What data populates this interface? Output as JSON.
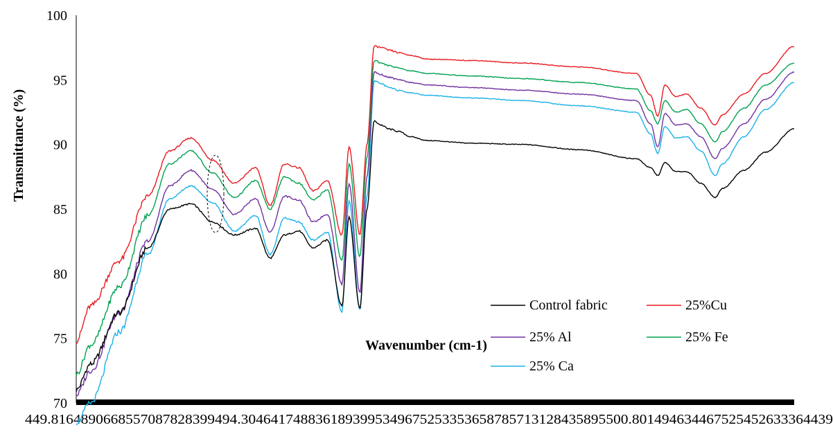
{
  "chart_data": {
    "type": "line",
    "title": "",
    "xlabel": "Wavenumber (cm-1)",
    "ylabel": "Transmittance (%)",
    "ylim": [
      70,
      100
    ],
    "yticks": [
      "70",
      "75",
      "80",
      "85",
      "90",
      "95",
      "100"
    ],
    "xtick_text": "449.8164890668557087828399494.3046417488361893995349675253353658785713128435895500.801494634467525452633364439",
    "x_direction": "increasing left to right",
    "grid": false,
    "legend_placement": "bottom-right",
    "series": [
      {
        "name": "Control fabric",
        "color": "#000000",
        "x": [
          0,
          0.02,
          0.06,
          0.1,
          0.13,
          0.16,
          0.19,
          0.22,
          0.25,
          0.27,
          0.29,
          0.31,
          0.33,
          0.35,
          0.37,
          0.38,
          0.395,
          0.405,
          0.415,
          0.425,
          0.435,
          0.45,
          0.465,
          0.49,
          0.55,
          0.62,
          0.7,
          0.78,
          0.8,
          0.81,
          0.82,
          0.835,
          0.85,
          0.87,
          0.89,
          0.9,
          0.93,
          0.96,
          1.0
        ],
        "values": [
          71.0,
          73.0,
          77.0,
          82.0,
          85.0,
          85.4,
          84.0,
          83.0,
          83.5,
          81.2,
          83.0,
          83.3,
          82.0,
          82.6,
          77.5,
          84.4,
          77.3,
          85.0,
          91.8,
          91.5,
          91.2,
          91.0,
          90.6,
          90.3,
          90.1,
          90.0,
          89.6,
          88.9,
          88.2,
          87.6,
          88.6,
          87.9,
          87.9,
          87.0,
          85.9,
          86.6,
          88.0,
          89.4,
          91.2
        ]
      },
      {
        "name": "25%Cu",
        "color": "#e8191f",
        "x": [
          0,
          0.02,
          0.06,
          0.1,
          0.13,
          0.16,
          0.19,
          0.22,
          0.25,
          0.27,
          0.29,
          0.31,
          0.33,
          0.35,
          0.37,
          0.38,
          0.395,
          0.405,
          0.415,
          0.425,
          0.435,
          0.45,
          0.465,
          0.49,
          0.55,
          0.62,
          0.7,
          0.78,
          0.8,
          0.81,
          0.82,
          0.835,
          0.85,
          0.87,
          0.89,
          0.9,
          0.93,
          0.96,
          1.0
        ],
        "values": [
          74.8,
          77.5,
          81.0,
          86.0,
          89.5,
          90.5,
          88.8,
          87.0,
          88.2,
          85.3,
          88.5,
          88.2,
          86.4,
          87.2,
          83.0,
          89.8,
          83.0,
          90.0,
          97.6,
          97.5,
          97.3,
          97.1,
          96.9,
          96.6,
          96.5,
          96.3,
          96.0,
          95.5,
          93.8,
          92.2,
          94.6,
          93.7,
          93.9,
          92.8,
          91.5,
          92.3,
          93.9,
          95.5,
          97.6
        ]
      },
      {
        "name": "25% Al",
        "color": "#7030a0",
        "x": [
          0,
          0.02,
          0.06,
          0.1,
          0.13,
          0.16,
          0.19,
          0.22,
          0.25,
          0.27,
          0.29,
          0.31,
          0.33,
          0.35,
          0.37,
          0.38,
          0.395,
          0.405,
          0.415,
          0.425,
          0.435,
          0.45,
          0.465,
          0.49,
          0.55,
          0.62,
          0.7,
          0.78,
          0.8,
          0.81,
          0.82,
          0.835,
          0.85,
          0.87,
          0.89,
          0.9,
          0.93,
          0.96,
          1.0
        ],
        "values": [
          70.6,
          72.5,
          77.0,
          82.5,
          86.8,
          88.0,
          86.5,
          84.6,
          85.8,
          83.2,
          86.0,
          85.7,
          84.0,
          84.6,
          79.2,
          87.0,
          78.5,
          87.5,
          95.6,
          95.4,
          95.2,
          95.0,
          94.8,
          94.6,
          94.4,
          94.2,
          93.9,
          93.4,
          91.6,
          89.8,
          92.4,
          91.5,
          91.6,
          90.6,
          88.9,
          89.7,
          91.6,
          93.5,
          95.6
        ]
      },
      {
        "name": "25% Fe",
        "color": "#00a050",
        "x": [
          0,
          0.02,
          0.06,
          0.1,
          0.13,
          0.16,
          0.19,
          0.22,
          0.25,
          0.27,
          0.29,
          0.31,
          0.33,
          0.35,
          0.37,
          0.38,
          0.395,
          0.405,
          0.415,
          0.425,
          0.435,
          0.45,
          0.465,
          0.49,
          0.55,
          0.62,
          0.7,
          0.78,
          0.8,
          0.81,
          0.82,
          0.835,
          0.85,
          0.87,
          0.89,
          0.9,
          0.93,
          0.96,
          1.0
        ],
        "values": [
          72.2,
          74.5,
          79.0,
          84.5,
          88.5,
          89.5,
          87.8,
          85.9,
          87.2,
          85.0,
          87.5,
          87.0,
          85.7,
          86.5,
          81.0,
          88.5,
          81.3,
          89.0,
          96.5,
          96.3,
          96.1,
          95.9,
          95.7,
          95.5,
          95.3,
          95.1,
          94.8,
          94.3,
          92.6,
          91.6,
          93.4,
          92.5,
          92.7,
          91.6,
          90.2,
          91.0,
          92.8,
          94.6,
          96.3
        ]
      },
      {
        "name": "25% Ca",
        "color": "#1ab0e8",
        "x": [
          0,
          0.02,
          0.06,
          0.1,
          0.13,
          0.16,
          0.19,
          0.22,
          0.25,
          0.27,
          0.29,
          0.31,
          0.33,
          0.35,
          0.37,
          0.38,
          0.395,
          0.405,
          0.415,
          0.425,
          0.435,
          0.45,
          0.465,
          0.49,
          0.55,
          0.62,
          0.7,
          0.78,
          0.8,
          0.81,
          0.82,
          0.835,
          0.85,
          0.87,
          0.89,
          0.9,
          0.93,
          0.96,
          1.0
        ],
        "values": [
          68.5,
          70.0,
          75.5,
          81.5,
          85.8,
          86.8,
          85.5,
          83.3,
          84.5,
          81.5,
          84.3,
          84.0,
          82.6,
          83.2,
          77.0,
          85.7,
          77.2,
          86.0,
          94.9,
          94.7,
          94.4,
          94.2,
          94.0,
          93.8,
          93.6,
          93.4,
          93.0,
          92.5,
          90.8,
          89.3,
          91.4,
          90.5,
          90.6,
          89.5,
          87.6,
          88.5,
          90.6,
          92.7,
          94.8
        ]
      }
    ],
    "annotations": [
      {
        "type": "dashed-ellipse",
        "note": "marks a small absorption band near x≈0.19"
      }
    ]
  }
}
